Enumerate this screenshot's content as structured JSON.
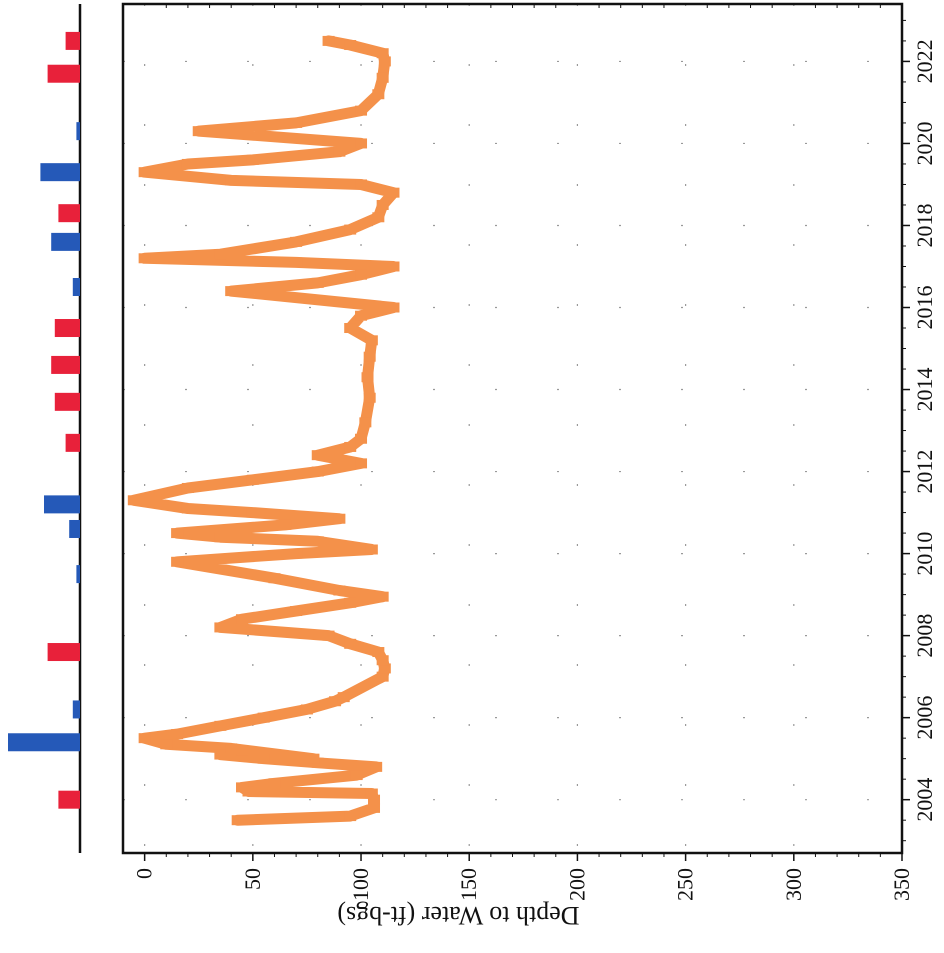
{
  "chart_data": [
    {
      "type": "line",
      "title": "",
      "xlabel": "Depth to Water (ft-bgs)",
      "ylabel": "",
      "x_ticks": [
        "0",
        "50",
        "100",
        "150",
        "200",
        "250",
        "300",
        "350"
      ],
      "y_ticks": [
        "2004",
        "2006",
        "2008",
        "2010",
        "2012",
        "2014",
        "2016",
        "2018",
        "2020",
        "2022"
      ],
      "xlim": [
        -10,
        350
      ],
      "ylim": [
        2002.7,
        2023.4
      ],
      "grid": true,
      "series": [
        {
          "color": "#f4914a",
          "points": [
            [
              43,
              2003.5
            ],
            [
              95,
              2003.6
            ],
            [
              106,
              2003.8
            ],
            [
              106,
              2004.0
            ],
            [
              105,
              2004.15
            ],
            [
              48,
              2004.2
            ],
            [
              45,
              2004.3
            ],
            [
              60,
              2004.4
            ],
            [
              98,
              2004.6
            ],
            [
              107,
              2004.8
            ],
            [
              80,
              2004.9
            ],
            [
              55,
              2005.0
            ],
            [
              35,
              2005.1
            ],
            [
              45,
              2005.2
            ],
            [
              78,
              2005.0
            ],
            [
              40,
              2005.25
            ],
            [
              10,
              2005.35
            ],
            [
              0,
              2005.5
            ],
            [
              15,
              2005.6
            ],
            [
              35,
              2005.8
            ],
            [
              55,
              2006.0
            ],
            [
              75,
              2006.2
            ],
            [
              88,
              2006.4
            ],
            [
              92,
              2006.5
            ],
            [
              110,
              2007.0
            ],
            [
              111,
              2007.2
            ],
            [
              110,
              2007.4
            ],
            [
              108,
              2007.6
            ],
            [
              95,
              2007.8
            ],
            [
              85,
              2008.0
            ],
            [
              35,
              2008.2
            ],
            [
              45,
              2008.4
            ],
            [
              70,
              2008.6
            ],
            [
              95,
              2008.8
            ],
            [
              110,
              2008.95
            ],
            [
              90,
              2009.1
            ],
            [
              60,
              2009.4
            ],
            [
              15,
              2009.8
            ],
            [
              70,
              2010.0
            ],
            [
              105,
              2010.1
            ],
            [
              80,
              2010.3
            ],
            [
              35,
              2010.4
            ],
            [
              15,
              2010.5
            ],
            [
              65,
              2010.7
            ],
            [
              90,
              2010.85
            ],
            [
              50,
              2011.0
            ],
            [
              20,
              2011.1
            ],
            [
              -5,
              2011.3
            ],
            [
              20,
              2011.6
            ],
            [
              50,
              2011.8
            ],
            [
              80,
              2012.0
            ],
            [
              100,
              2012.2
            ],
            [
              80,
              2012.4
            ],
            [
              95,
              2012.6
            ],
            [
              100,
              2012.8
            ],
            [
              102,
              2013.2
            ],
            [
              104,
              2013.8
            ],
            [
              103,
              2014.3
            ],
            [
              104,
              2014.8
            ],
            [
              105,
              2015.2
            ],
            [
              95,
              2015.5
            ],
            [
              100,
              2015.8
            ],
            [
              115,
              2016.0
            ],
            [
              40,
              2016.4
            ],
            [
              80,
              2016.6
            ],
            [
              100,
              2016.8
            ],
            [
              115,
              2017.0
            ],
            [
              70,
              2017.1
            ],
            [
              0,
              2017.2
            ],
            [
              35,
              2017.3
            ],
            [
              70,
              2017.6
            ],
            [
              95,
              2017.9
            ],
            [
              108,
              2018.2
            ],
            [
              110,
              2018.5
            ],
            [
              115,
              2018.8
            ],
            [
              100,
              2019.0
            ],
            [
              40,
              2019.1
            ],
            [
              0,
              2019.3
            ],
            [
              20,
              2019.5
            ],
            [
              50,
              2019.6
            ],
            [
              90,
              2019.8
            ],
            [
              100,
              2020.0
            ],
            [
              25,
              2020.3
            ],
            [
              70,
              2020.5
            ],
            [
              100,
              2020.8
            ],
            [
              108,
              2021.2
            ],
            [
              110,
              2021.6
            ],
            [
              111,
              2022.0
            ],
            [
              110,
              2022.2
            ],
            [
              95,
              2022.4
            ],
            [
              85,
              2022.5
            ]
          ]
        }
      ]
    },
    {
      "type": "bar",
      "title": "",
      "xlabel": "",
      "ylabel": "",
      "note": "unlabeled bars; value axis not numbered, magnitudes relative (0-1)",
      "series": [
        {
          "color": "#e8213a",
          "points": [
            [
              2004.0,
              0.3
            ],
            [
              2007.6,
              0.45
            ],
            [
              2012.7,
              0.2
            ],
            [
              2013.7,
              0.35
            ],
            [
              2014.6,
              0.4
            ],
            [
              2015.5,
              0.35
            ],
            [
              2018.3,
              0.3
            ],
            [
              2021.7,
              0.45
            ],
            [
              2022.5,
              0.2
            ]
          ]
        },
        {
          "color": "#2559b8",
          "points": [
            [
              2005.4,
              1.0
            ],
            [
              2006.2,
              0.1
            ],
            [
              2009.5,
              0.05
            ],
            [
              2010.6,
              0.15
            ],
            [
              2011.2,
              0.5
            ],
            [
              2016.5,
              0.1
            ],
            [
              2017.6,
              0.4
            ],
            [
              2019.3,
              0.55
            ],
            [
              2020.3,
              0.05
            ]
          ]
        }
      ]
    }
  ]
}
